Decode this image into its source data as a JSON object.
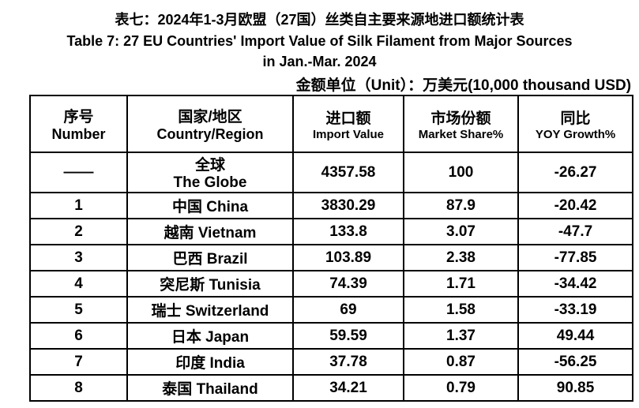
{
  "header": {
    "title_cn": "表七：2024年1-3月欧盟（27国）丝类自主要来源地进口额统计表",
    "title_en": [
      "Table 7: 27 EU Countries' Import Value of Silk Filament from Major Sources",
      "in Jan.-Mar. 2024"
    ],
    "unit": "金额单位（Unit）：万美元(10,000 thousand USD)"
  },
  "table": {
    "columns": [
      [
        "序号",
        "Number"
      ],
      [
        "国家/地区",
        "Country/Region"
      ],
      [
        "进口额",
        "Import Value"
      ],
      [
        "市场份额",
        "Market Share%"
      ],
      [
        "同比",
        "YOY Growth%"
      ]
    ],
    "rows": [
      [
        "——",
        [
          "全球",
          "The Globe"
        ],
        "4357.58",
        "100",
        "-26.27"
      ],
      [
        "1",
        "中国 China",
        "3830.29",
        "87.9",
        "-20.42"
      ],
      [
        "2",
        "越南 Vietnam",
        "133.8",
        "3.07",
        "-47.7"
      ],
      [
        "3",
        "巴西 Brazil",
        "103.89",
        "2.38",
        "-77.85"
      ],
      [
        "4",
        "突尼斯 Tunisia",
        "74.39",
        "1.71",
        "-34.42"
      ],
      [
        "5",
        "瑞士 Switzerland",
        "69",
        "1.58",
        "-33.19"
      ],
      [
        "6",
        "日本 Japan",
        "59.59",
        "1.37",
        "49.44"
      ],
      [
        "7",
        "印度 India",
        "37.78",
        "0.87",
        "-56.25"
      ],
      [
        "8",
        "泰国 Thailand",
        "34.21",
        "0.79",
        "90.85"
      ]
    ]
  }
}
